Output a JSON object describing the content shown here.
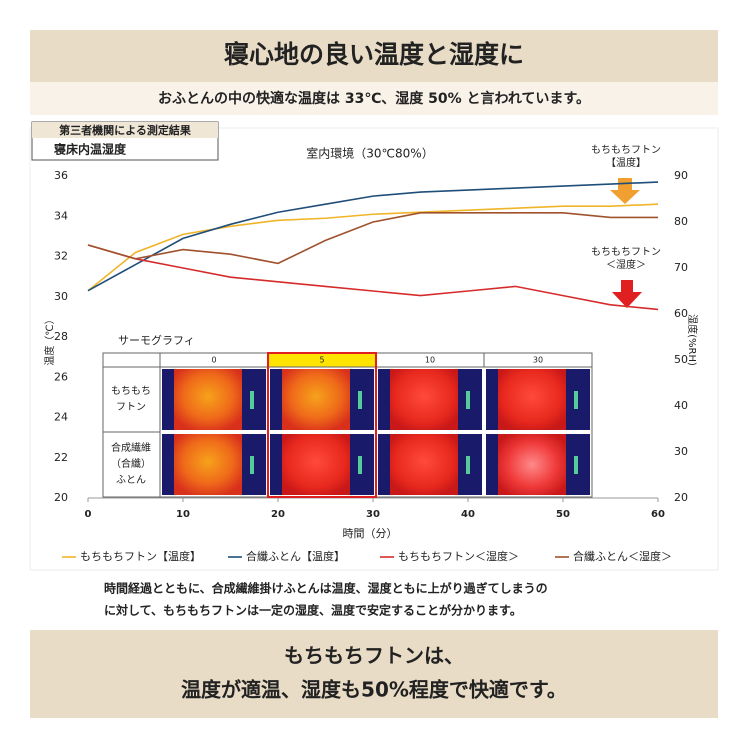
{
  "header": {
    "title": "寝心地の良い温度と湿度に",
    "subtitle": "おふとんの中の快適な温度は 33℃、湿度 50% と言われています。"
  },
  "badge": {
    "line1": "第三者機関による測定結果",
    "line2": "寝床内温湿度"
  },
  "chart_data": {
    "type": "line",
    "title": "室内環境（30℃80%）",
    "x_label": "時間（分）",
    "y_label": "温度（℃）",
    "y2_label": "湿度(%RH)",
    "x": [
      0,
      5,
      10,
      15,
      20,
      25,
      30,
      35,
      40,
      45,
      50,
      55,
      60
    ],
    "xlim": [
      0,
      60
    ],
    "xticks": [
      0,
      10,
      20,
      30,
      40,
      50,
      60
    ],
    "ylim": [
      20,
      36
    ],
    "yticks": [
      20,
      22,
      24,
      26,
      28,
      30,
      32,
      34,
      36
    ],
    "y2lim": [
      20,
      90
    ],
    "y2ticks": [
      20,
      30,
      40,
      50,
      60,
      70,
      80,
      90
    ],
    "series": [
      {
        "name": "もちもちフトン【温度】",
        "color": "#f0b429",
        "values": [
          30.3,
          32.2,
          33.1,
          33.5,
          33.8,
          33.9,
          34.1,
          34.2,
          34.3,
          34.4,
          34.5,
          34.5,
          34.6
        ]
      },
      {
        "name": "合纖ふとん【温度】",
        "color": "#1f4e79",
        "values": [
          30.3,
          31.6,
          32.9,
          33.6,
          34.2,
          34.6,
          35.0,
          35.2,
          35.3,
          35.4,
          35.5,
          35.6,
          35.7
        ]
      },
      {
        "name": "もちもちフトン＜湿度＞",
        "color": "#d62b2b",
        "axis": "y2",
        "values": [
          75,
          72,
          70,
          68,
          67,
          66,
          65,
          64,
          65,
          66,
          64,
          62,
          61
        ]
      },
      {
        "name": "合纖ふとん＜湿度＞",
        "color": "#a0522d",
        "axis": "y2",
        "values": [
          75,
          72,
          74,
          73,
          71,
          76,
          80,
          82,
          82,
          82,
          82,
          81,
          81
        ]
      }
    ],
    "annotations": [
      [
        "もちもちフトン",
        "【温度】"
      ],
      [
        "もちもちフトン",
        "＜湿度＞"
      ]
    ]
  },
  "thermography": {
    "title": "サーモグラフィ",
    "columns": [
      "0",
      "5",
      "10",
      "30"
    ],
    "rows": [
      [
        "もちもち",
        "フトン"
      ],
      [
        "合成繊維",
        "（合纖）",
        "ふとん"
      ]
    ]
  },
  "footer": {
    "note": [
      "時間経過とともに、合成繊維掛けふとんは温度、湿度ともに上がり過ぎてしまうの",
      "に対して、もちもちフトンは一定の湿度、温度で安定することが分かります。"
    ],
    "conclusion": [
      "もちもちフトンは、",
      "温度が適温、湿度も50%程度で快適です。"
    ]
  }
}
